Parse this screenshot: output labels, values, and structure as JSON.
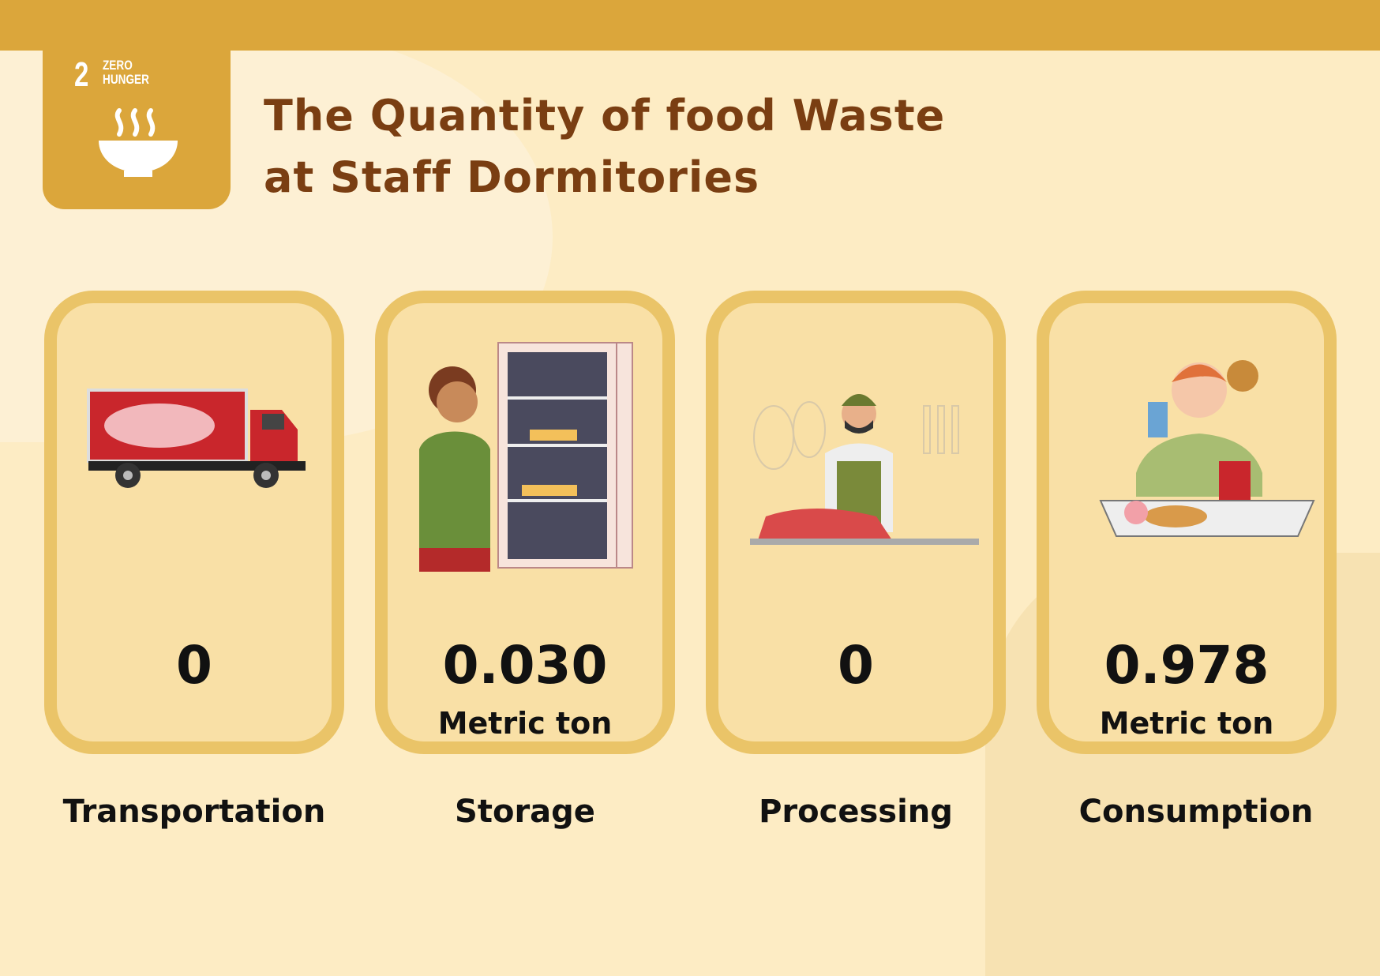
{
  "badge": {
    "number": "2",
    "text_line1": "ZERO",
    "text_line2": "HUNGER",
    "icon": "soup-bowl-icon"
  },
  "title": {
    "line1": "The Quantity of food Waste",
    "line2": "at Staff Dormitories"
  },
  "colors": {
    "top_bar": "#dba63b",
    "title": "#7a3e12",
    "card_border": "#eac468",
    "card_fill": "#f9e0a6",
    "background": "#fdecc4"
  },
  "cards": [
    {
      "label": "Transportation",
      "value": "0",
      "unit": "",
      "illustration": "refrigerated-truck"
    },
    {
      "label": "Storage",
      "value": "0.030",
      "unit": "Metric ton",
      "illustration": "person-at-fridge"
    },
    {
      "label": "Processing",
      "value": "0",
      "unit": "",
      "illustration": "butcher"
    },
    {
      "label": "Consumption",
      "value": "0.978",
      "unit": "Metric ton",
      "illustration": "person-eating"
    }
  ]
}
